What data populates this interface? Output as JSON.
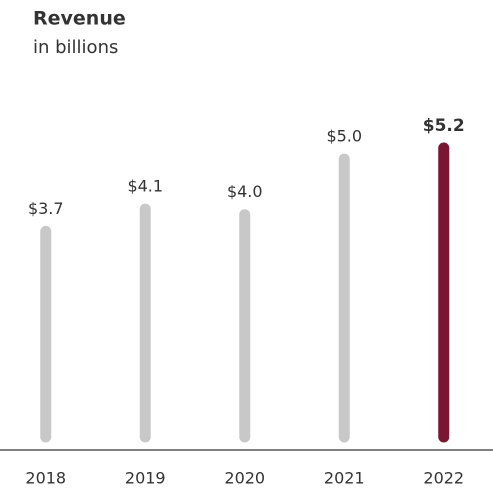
{
  "chart_data": {
    "type": "bar",
    "title": "Revenue",
    "subtitle": "in billions",
    "categories": [
      "2018",
      "2019",
      "2020",
      "2021",
      "2022"
    ],
    "values": [
      3.7,
      4.1,
      4.0,
      5.0,
      5.2
    ],
    "value_labels": [
      "$3.7",
      "$4.1",
      "$4.0",
      "$5.0",
      "$5.2"
    ],
    "colors": [
      "#c8c8c8",
      "#c8c8c8",
      "#c8c8c8",
      "#c8c8c8",
      "#7b1530"
    ]
  }
}
